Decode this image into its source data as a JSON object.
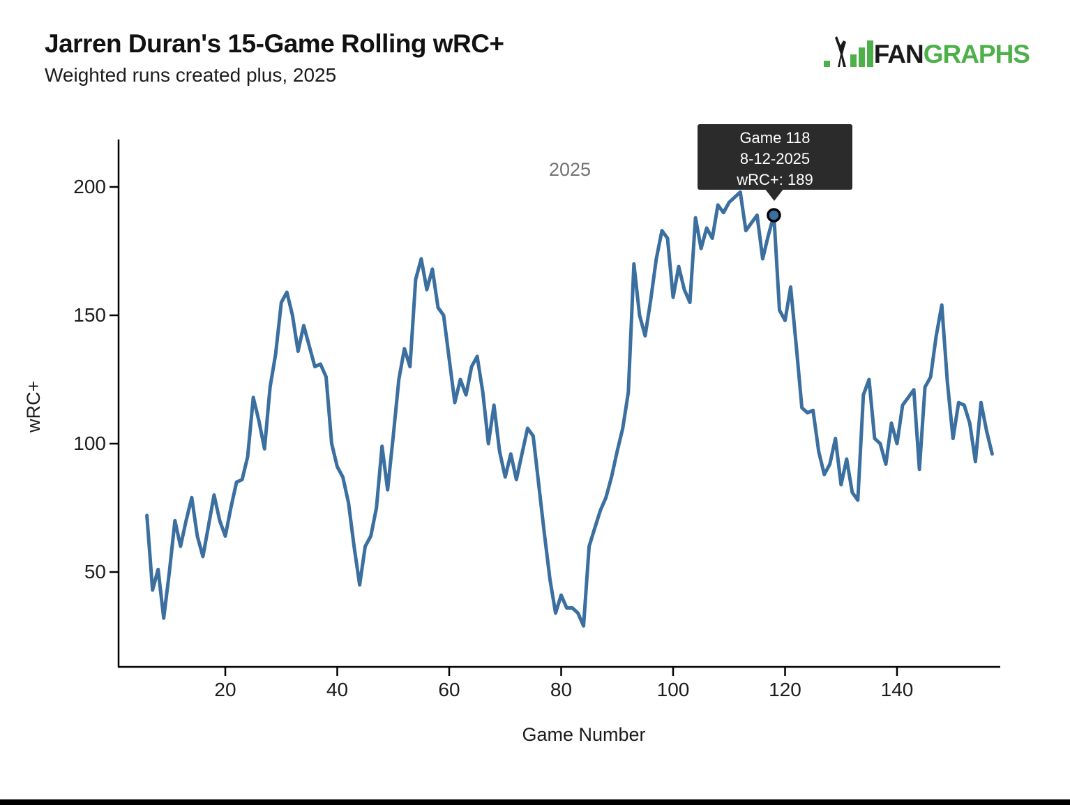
{
  "page": {
    "title": "Jarren Duran's 15-Game Rolling wRC+",
    "subtitle": "Weighted runs created plus, 2025"
  },
  "logo": {
    "fan": "FAN",
    "graphs": "GRAPHS",
    "green": "#4db04a",
    "black": "#1a1a1a"
  },
  "season_label": "2025",
  "tooltip": {
    "line1": "Game 118",
    "line2": "8-12-2025",
    "line3": "wRC+: 189",
    "bg": "#2b2b2b",
    "text_color": "#ffffff"
  },
  "chart_data": {
    "type": "line",
    "title": "Jarren Duran's 15-Game Rolling wRC+",
    "subtitle": "Weighted runs created plus, 2025",
    "xlabel": "Game Number",
    "ylabel": "wRC+",
    "x_range": [
      6,
      157
    ],
    "x_step": 1,
    "x_ticks": [
      20,
      40,
      60,
      80,
      100,
      120,
      140
    ],
    "y_ticks": [
      50,
      100,
      150,
      200
    ],
    "xlim": [
      1,
      158
    ],
    "ylim": [
      13,
      217
    ],
    "grid": false,
    "legend": "none",
    "line_color": "#3a6fa0",
    "axis_color": "#000000",
    "series": [
      {
        "name": "wRC+",
        "values": [
          72,
          43,
          51,
          32,
          50,
          70,
          60,
          70,
          79,
          64,
          56,
          68,
          80,
          70,
          64,
          75,
          85,
          86,
          95,
          118,
          109,
          98,
          122,
          135,
          155,
          159,
          150,
          136,
          146,
          138,
          130,
          131,
          126,
          100,
          91,
          87,
          77,
          60,
          45,
          60,
          64,
          75,
          99,
          82,
          103,
          125,
          137,
          130,
          164,
          172,
          160,
          168,
          153,
          150,
          133,
          116,
          125,
          119,
          130,
          134,
          120,
          100,
          115,
          97,
          87,
          96,
          86,
          96,
          106,
          103,
          84,
          65,
          47,
          34,
          41,
          36,
          36,
          34,
          29,
          60,
          67,
          74,
          79,
          87,
          97,
          106,
          120,
          170,
          150,
          142,
          156,
          172,
          183,
          180,
          157,
          169,
          160,
          155,
          188,
          176,
          184,
          180,
          193,
          190,
          194,
          196,
          198,
          183,
          186,
          189,
          172,
          181,
          189,
          152,
          148,
          161,
          138,
          114,
          112,
          113,
          97,
          88,
          92,
          102,
          84,
          94,
          81,
          78,
          119,
          125,
          102,
          100,
          92,
          108,
          100,
          115,
          118,
          121,
          90,
          122,
          126,
          142,
          154,
          124,
          102,
          116,
          115,
          108,
          93,
          116,
          105,
          96
        ]
      }
    ],
    "highlight": {
      "game": 118,
      "date": "8-12-2025",
      "wrc_plus": 189
    },
    "annotations": [
      {
        "text": "2025",
        "x": 81,
        "y": 207
      }
    ]
  }
}
